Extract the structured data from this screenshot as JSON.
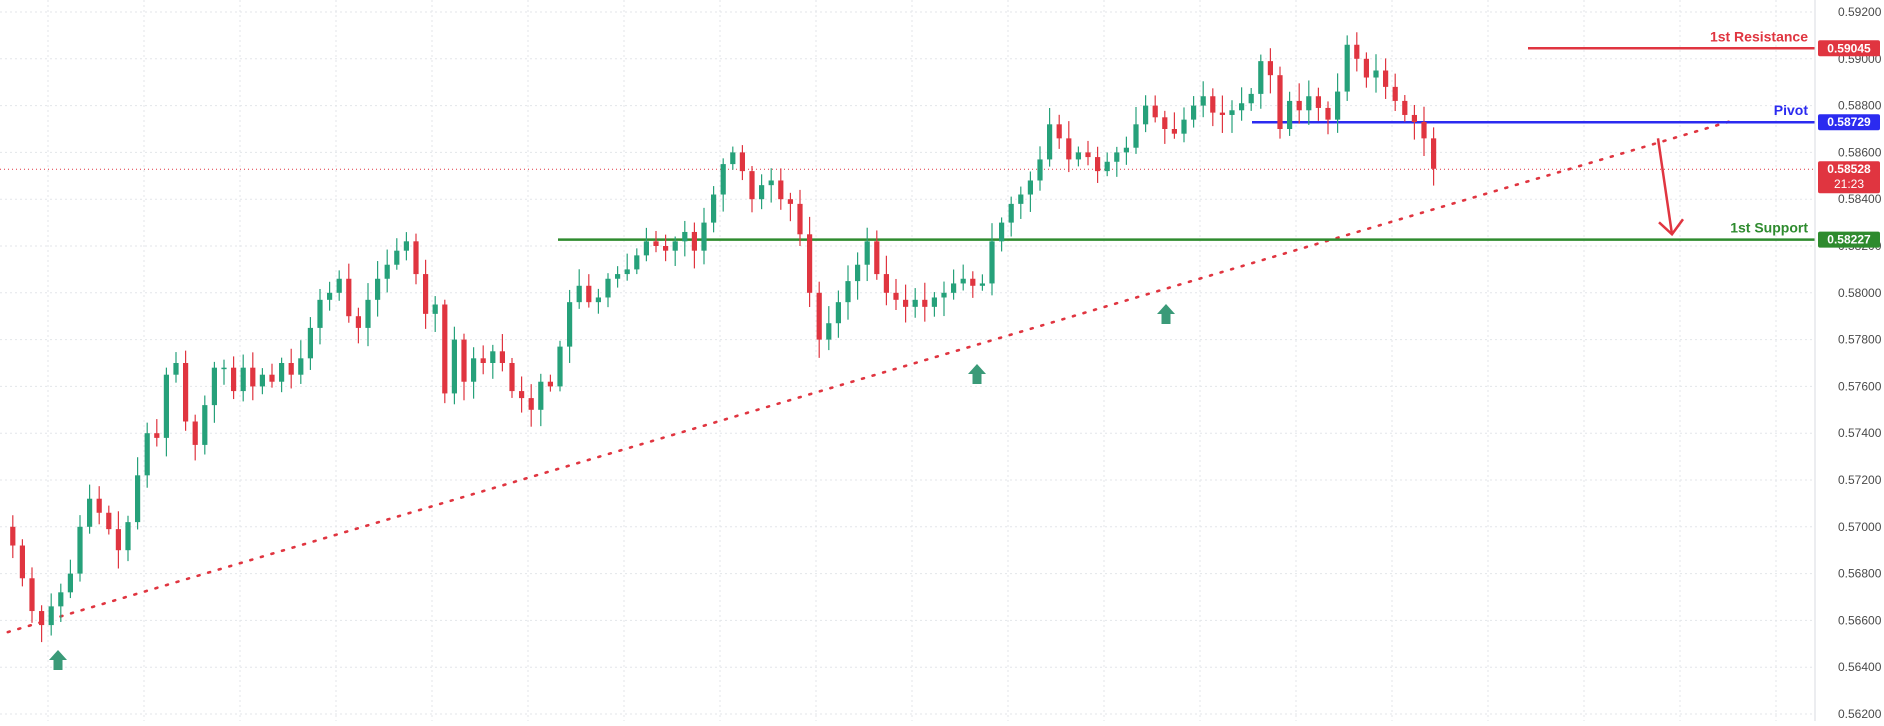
{
  "chart_data": {
    "type": "candlestick",
    "y_axis": {
      "min": 0.562,
      "max": 0.592,
      "ticks": [
        "0.56200",
        "0.56400",
        "0.56600",
        "0.56800",
        "0.57000",
        "0.57200",
        "0.57400",
        "0.57600",
        "0.57800",
        "0.58000",
        "0.58200",
        "0.58400",
        "0.58600",
        "0.58800",
        "0.59000",
        "0.59200"
      ]
    },
    "grid": true,
    "levels": [
      {
        "name": "1st Resistance",
        "value": 0.59045,
        "label": "0.59045",
        "color": "#e03540"
      },
      {
        "name": "Pivot",
        "value": 0.58729,
        "label": "0.58729",
        "color": "#2b2bf0"
      },
      {
        "name": "1st Support",
        "value": 0.58227,
        "label": "0.58227",
        "color": "#2e8b2e"
      }
    ],
    "current_price": {
      "value": 0.58528,
      "label": "0.58528",
      "countdown": "21:23",
      "color": "#e03540"
    },
    "trendline": {
      "style": "dotted",
      "color": "#e03540",
      "start": {
        "bar": 0,
        "price": 0.5655
      },
      "end": {
        "bar": 158,
        "price": 0.5874
      }
    },
    "projection_arrow": {
      "color": "#e03540",
      "from": 0.5866,
      "to": 0.5825
    },
    "bounce_markers_bar_index": [
      1,
      84,
      101
    ],
    "colors": {
      "up": "#26a17a",
      "down": "#e03540",
      "grid": "#e3e6ea",
      "axis_text": "#4a4a4a"
    },
    "close_path": [
      0.5692,
      0.5678,
      0.5664,
      0.5658,
      0.5666,
      0.5672,
      0.568,
      0.57,
      0.5712,
      0.5706,
      0.5699,
      0.569,
      0.5702,
      0.5722,
      0.574,
      0.5738,
      0.5765,
      0.577,
      0.5745,
      0.5735,
      0.5752,
      0.5768,
      0.5768,
      0.5758,
      0.5768,
      0.576,
      0.5765,
      0.5762,
      0.577,
      0.5765,
      0.5772,
      0.5785,
      0.5797,
      0.58,
      0.5806,
      0.579,
      0.5785,
      0.5797,
      0.5806,
      0.5812,
      0.5818,
      0.5822,
      0.5808,
      0.5791,
      0.5795,
      0.5757,
      0.578,
      0.5762,
      0.5772,
      0.577,
      0.5775,
      0.577,
      0.5758,
      0.5755,
      0.575,
      0.5762,
      0.576,
      0.5777,
      0.5796,
      0.5803,
      0.5796,
      0.5798,
      0.5806,
      0.5808,
      0.581,
      0.5816,
      0.5822,
      0.582,
      0.5818,
      0.5822,
      0.5826,
      0.5818,
      0.583,
      0.5842,
      0.5855,
      0.586,
      0.5852,
      0.584,
      0.5846,
      0.5848,
      0.584,
      0.5838,
      0.5825,
      0.58,
      0.578,
      0.5787,
      0.5796,
      0.5805,
      0.5812,
      0.5822,
      0.5808,
      0.58,
      0.5797,
      0.5794,
      0.5797,
      0.5794,
      0.5798,
      0.58,
      0.5804,
      0.5806,
      0.5803,
      0.5804,
      0.5822,
      0.583,
      0.5838,
      0.5842,
      0.5848,
      0.5857,
      0.5872,
      0.5866,
      0.5857,
      0.586,
      0.5858,
      0.5852,
      0.5856,
      0.586,
      0.5862,
      0.5872,
      0.588,
      0.5875,
      0.587,
      0.5868,
      0.5874,
      0.588,
      0.5884,
      0.5877,
      0.5876,
      0.5878,
      0.5881,
      0.5885,
      0.5899,
      0.5893,
      0.587,
      0.5882,
      0.5878,
      0.5884,
      0.5879,
      0.5874,
      0.5886,
      0.5906,
      0.59,
      0.5892,
      0.5895,
      0.5888,
      0.5882,
      0.5876,
      0.5873,
      0.5866,
      0.5853
    ]
  }
}
